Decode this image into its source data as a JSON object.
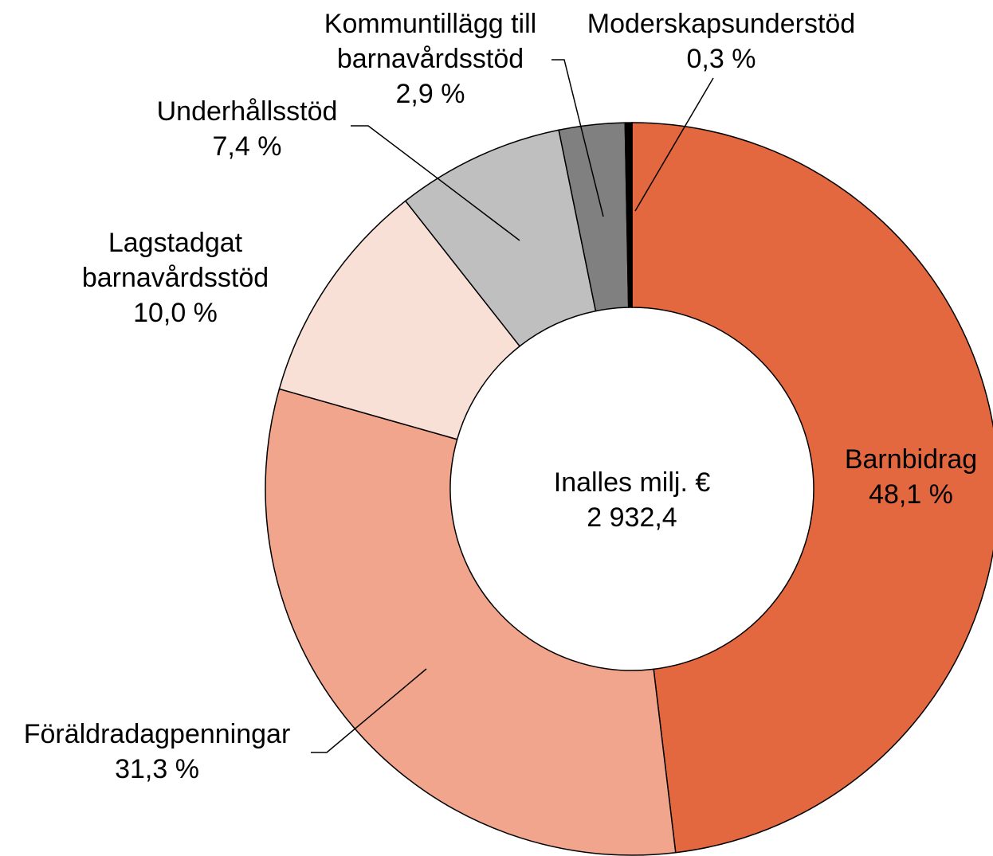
{
  "chart_data": {
    "type": "donut",
    "categories": [
      "Barnbidrag",
      "Föräldradagpenningar",
      "Lagstadgat barnavårdsstöd",
      "Underhållsstöd",
      "Kommuntillägg till barnavårdsstöd",
      "Moderskapsunderstöd"
    ],
    "values": [
      48.1,
      31.3,
      10.0,
      7.4,
      2.9,
      0.3
    ],
    "value_labels": [
      "48,1 %",
      "31,3 %",
      "10,0 %",
      "7,4 %",
      "2,9 %",
      "0,3 %"
    ],
    "colors": [
      "#e4683f",
      "#f0a58c",
      "#f9e0d7",
      "#bfbfbf",
      "#808080",
      "#000000"
    ],
    "center_text": [
      "Inalles milj. €",
      "2 932,4"
    ]
  }
}
